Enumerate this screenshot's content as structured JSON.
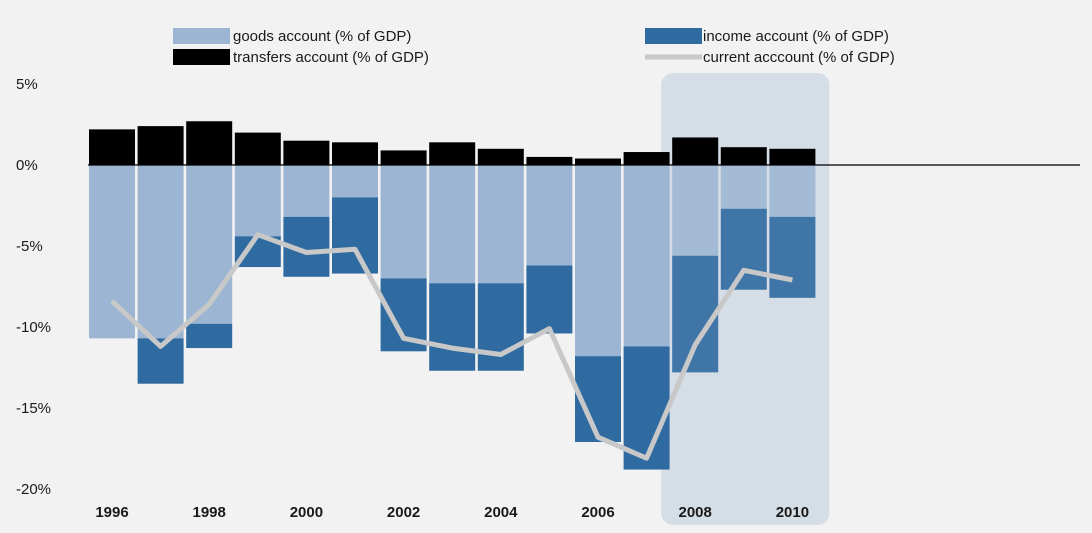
{
  "colors": {
    "background": "#f2f2f2",
    "goods": "#9bb5d2",
    "income": "#2f6aa0",
    "transfers": "#000000",
    "current": "#c8c8c8",
    "forecast_shade": "#d5dde6"
  },
  "chart_data": {
    "type": "bar",
    "stacked": true,
    "x": [
      1996,
      1997,
      1998,
      1999,
      2000,
      2001,
      2002,
      2003,
      2004,
      2005,
      2006,
      2007,
      2008,
      2009,
      2010
    ],
    "x_tick_labels": [
      "1996",
      "1998",
      "2000",
      "2002",
      "2004",
      "2006",
      "2008",
      "2010"
    ],
    "y_tick_labels": [
      "5%",
      "0%",
      "-5%",
      "-10%",
      "-15%",
      "-20%"
    ],
    "ylim": [
      -20,
      5
    ],
    "y_unit": "% of GDP",
    "legend_position": "top",
    "grid": false,
    "shaded_period": [
      2008,
      2010
    ],
    "series": [
      {
        "name": "goods account (% of GDP)",
        "kind": "bar",
        "values": [
          -10.7,
          -10.7,
          -9.8,
          -4.4,
          -3.2,
          -2.0,
          -7.0,
          -7.3,
          -7.3,
          -6.2,
          -11.8,
          -11.2,
          -5.6,
          -2.7,
          -3.2
        ]
      },
      {
        "name": "income account (% of GDP)",
        "kind": "bar",
        "values": [
          0.0,
          -2.8,
          -1.5,
          -1.9,
          -3.7,
          -4.7,
          -4.5,
          -5.4,
          -5.4,
          -4.2,
          -5.3,
          -7.6,
          -7.2,
          -5.0,
          -5.0
        ]
      },
      {
        "name": "transfers account (% of GDP)",
        "kind": "bar",
        "values": [
          2.2,
          2.4,
          2.7,
          2.0,
          1.5,
          1.4,
          0.9,
          1.4,
          1.0,
          0.5,
          0.4,
          0.8,
          1.7,
          1.1,
          1.0
        ]
      },
      {
        "name": "current acccount (% of GDP)",
        "kind": "line",
        "values": [
          -8.4,
          -11.2,
          -8.6,
          -4.3,
          -5.4,
          -5.2,
          -10.7,
          -11.3,
          -11.7,
          -10.1,
          -16.8,
          -18.1,
          -11.1,
          -6.5,
          -7.1
        ]
      }
    ]
  }
}
